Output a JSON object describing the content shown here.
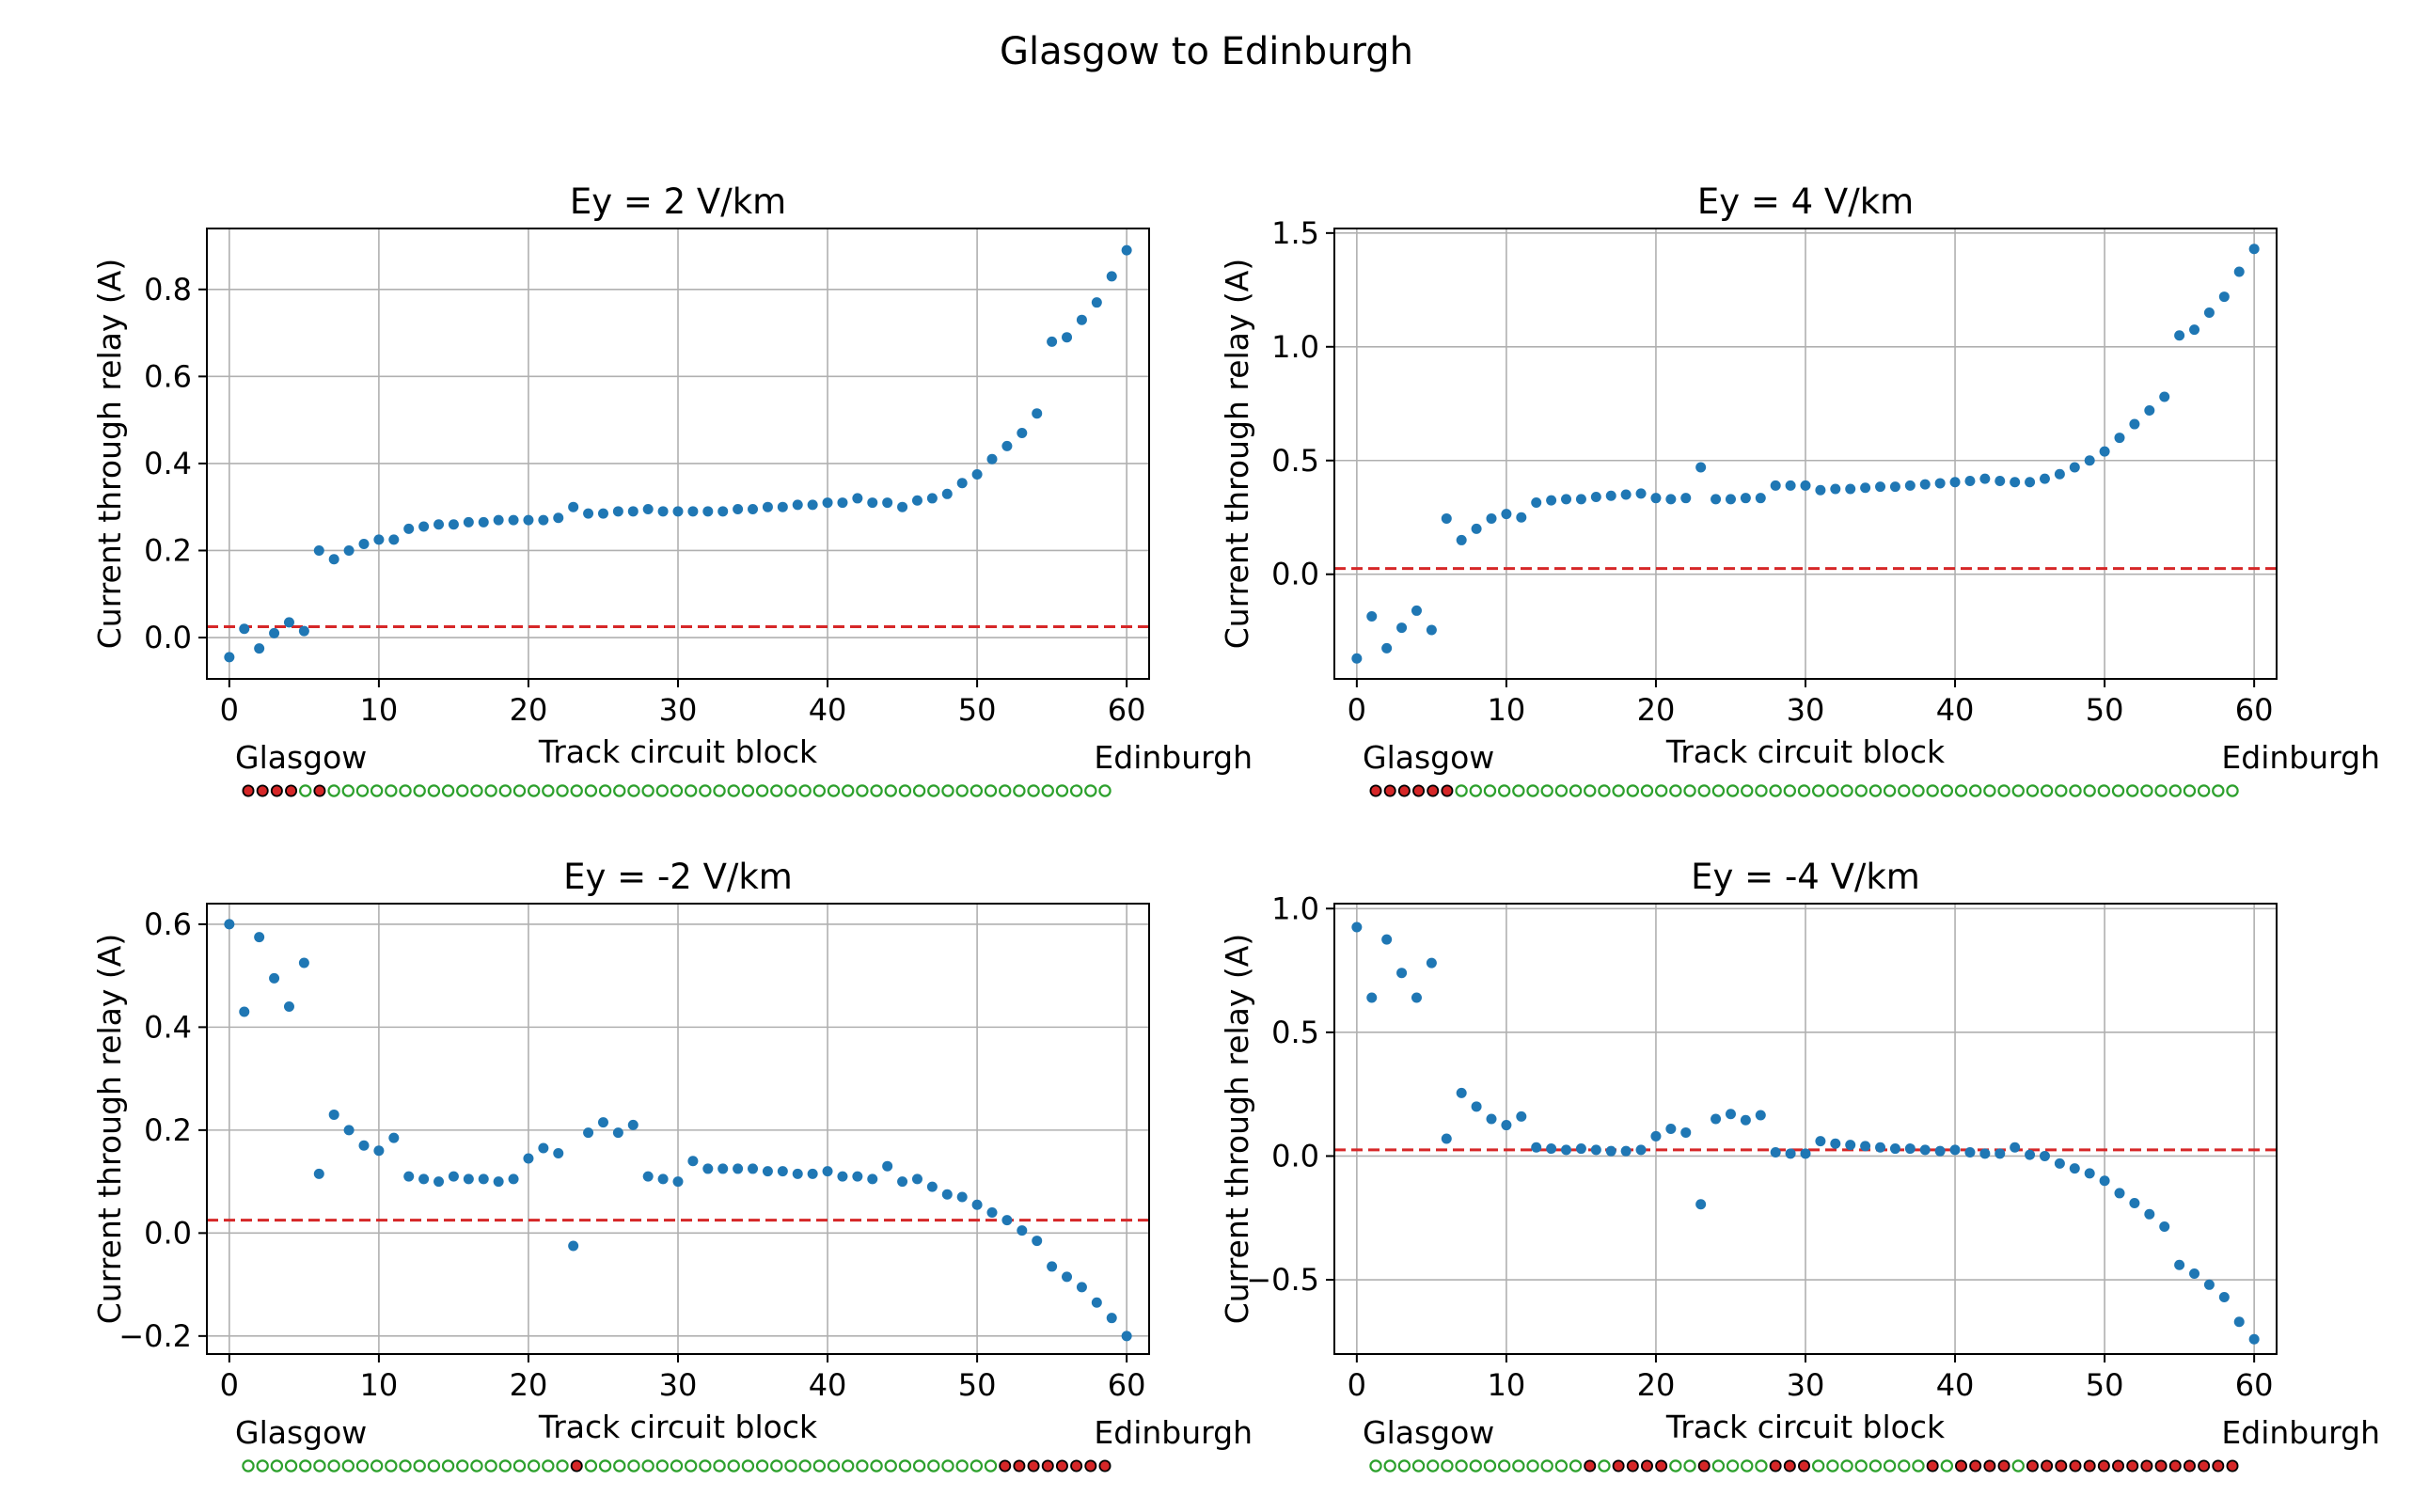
{
  "title": "Glasgow to Edinburgh",
  "colors": {
    "points": "#1f77b4",
    "threshold": "#d62728",
    "grid": "#b0b0b0",
    "indicator_on": "#d62728",
    "indicator_off": "#2ca02c"
  },
  "chart_data": [
    {
      "type": "scatter",
      "title": "Ey = 2 V/km",
      "xlabel": "Track circuit block",
      "ylabel": "Current through relay (A)",
      "start_label": "Glasgow",
      "end_label": "Edinburgh",
      "grid": true,
      "threshold": 0.025,
      "xlim": [
        -1.5,
        61.5
      ],
      "ylim": [
        -0.095,
        0.94
      ],
      "xticks": [
        0,
        10,
        20,
        30,
        40,
        50,
        60
      ],
      "yticks": [
        0.0,
        0.2,
        0.4,
        0.6,
        0.8
      ],
      "ytick_labels": [
        "0.0",
        "0.2",
        "0.4",
        "0.6",
        "0.8"
      ],
      "x": [
        0,
        1,
        2,
        3,
        4,
        5,
        6,
        7,
        8,
        9,
        10,
        11,
        12,
        13,
        14,
        15,
        16,
        17,
        18,
        19,
        20,
        21,
        22,
        23,
        24,
        25,
        26,
        27,
        28,
        29,
        30,
        31,
        32,
        33,
        34,
        35,
        36,
        37,
        38,
        39,
        40,
        41,
        42,
        43,
        44,
        45,
        46,
        47,
        48,
        49,
        50,
        51,
        52,
        53,
        54,
        55,
        56,
        57,
        58,
        59,
        60
      ],
      "y": [
        -0.045,
        0.02,
        -0.025,
        0.01,
        0.035,
        0.015,
        0.2,
        0.18,
        0.2,
        0.215,
        0.225,
        0.225,
        0.25,
        0.255,
        0.26,
        0.26,
        0.265,
        0.265,
        0.27,
        0.27,
        0.27,
        0.27,
        0.275,
        0.3,
        0.285,
        0.285,
        0.29,
        0.29,
        0.295,
        0.29,
        0.29,
        0.29,
        0.29,
        0.29,
        0.295,
        0.295,
        0.3,
        0.3,
        0.305,
        0.305,
        0.31,
        0.31,
        0.32,
        0.31,
        0.31,
        0.3,
        0.315,
        0.32,
        0.33,
        0.355,
        0.375,
        0.41,
        0.44,
        0.47,
        0.515,
        0.68,
        0.69,
        0.73,
        0.77,
        0.83,
        0.89
      ],
      "relay_states": [
        1,
        1,
        1,
        1,
        0,
        1,
        0,
        0,
        0,
        0,
        0,
        0,
        0,
        0,
        0,
        0,
        0,
        0,
        0,
        0,
        0,
        0,
        0,
        0,
        0,
        0,
        0,
        0,
        0,
        0,
        0,
        0,
        0,
        0,
        0,
        0,
        0,
        0,
        0,
        0,
        0,
        0,
        0,
        0,
        0,
        0,
        0,
        0,
        0,
        0,
        0,
        0,
        0,
        0,
        0,
        0,
        0,
        0,
        0,
        0,
        0
      ]
    },
    {
      "type": "scatter",
      "title": "Ey = 4 V/km",
      "xlabel": "Track circuit block",
      "ylabel": "Current through relay (A)",
      "start_label": "Glasgow",
      "end_label": "Edinburgh",
      "grid": true,
      "threshold": 0.025,
      "xlim": [
        -1.5,
        61.5
      ],
      "ylim": [
        -0.46,
        1.52
      ],
      "xticks": [
        0,
        10,
        20,
        30,
        40,
        50,
        60
      ],
      "yticks": [
        0.0,
        0.5,
        1.0,
        1.5
      ],
      "ytick_labels": [
        "0.0",
        "0.5",
        "1.0",
        "1.5"
      ],
      "x": [
        0,
        1,
        2,
        3,
        4,
        5,
        6,
        7,
        8,
        9,
        10,
        11,
        12,
        13,
        14,
        15,
        16,
        17,
        18,
        19,
        20,
        21,
        22,
        23,
        24,
        25,
        26,
        27,
        28,
        29,
        30,
        31,
        32,
        33,
        34,
        35,
        36,
        37,
        38,
        39,
        40,
        41,
        42,
        43,
        44,
        45,
        46,
        47,
        48,
        49,
        50,
        51,
        52,
        53,
        54,
        55,
        56,
        57,
        58,
        59,
        60
      ],
      "y": [
        -0.37,
        -0.185,
        -0.325,
        -0.235,
        -0.16,
        -0.245,
        0.245,
        0.15,
        0.2,
        0.245,
        0.265,
        0.25,
        0.315,
        0.325,
        0.33,
        0.33,
        0.34,
        0.345,
        0.35,
        0.355,
        0.335,
        0.33,
        0.335,
        0.47,
        0.33,
        0.33,
        0.335,
        0.335,
        0.39,
        0.39,
        0.39,
        0.37,
        0.375,
        0.375,
        0.38,
        0.385,
        0.385,
        0.39,
        0.395,
        0.4,
        0.405,
        0.41,
        0.42,
        0.41,
        0.405,
        0.405,
        0.42,
        0.44,
        0.47,
        0.5,
        0.54,
        0.6,
        0.66,
        0.72,
        0.78,
        1.05,
        1.075,
        1.15,
        1.22,
        1.33,
        1.43
      ],
      "relay_states": [
        1,
        1,
        1,
        1,
        1,
        1,
        0,
        0,
        0,
        0,
        0,
        0,
        0,
        0,
        0,
        0,
        0,
        0,
        0,
        0,
        0,
        0,
        0,
        0,
        0,
        0,
        0,
        0,
        0,
        0,
        0,
        0,
        0,
        0,
        0,
        0,
        0,
        0,
        0,
        0,
        0,
        0,
        0,
        0,
        0,
        0,
        0,
        0,
        0,
        0,
        0,
        0,
        0,
        0,
        0,
        0,
        0,
        0,
        0,
        0,
        0
      ]
    },
    {
      "type": "scatter",
      "title": "Ey = -2 V/km",
      "xlabel": "Track circuit block",
      "ylabel": "Current through relay (A)",
      "start_label": "Glasgow",
      "end_label": "Edinburgh",
      "grid": true,
      "threshold": 0.025,
      "xlim": [
        -1.5,
        61.5
      ],
      "ylim": [
        -0.235,
        0.64
      ],
      "xticks": [
        0,
        10,
        20,
        30,
        40,
        50,
        60
      ],
      "yticks": [
        -0.2,
        0.0,
        0.2,
        0.4,
        0.6
      ],
      "ytick_labels": [
        "−0.2",
        "0.0",
        "0.2",
        "0.4",
        "0.6"
      ],
      "x": [
        0,
        1,
        2,
        3,
        4,
        5,
        6,
        7,
        8,
        9,
        10,
        11,
        12,
        13,
        14,
        15,
        16,
        17,
        18,
        19,
        20,
        21,
        22,
        23,
        24,
        25,
        26,
        27,
        28,
        29,
        30,
        31,
        32,
        33,
        34,
        35,
        36,
        37,
        38,
        39,
        40,
        41,
        42,
        43,
        44,
        45,
        46,
        47,
        48,
        49,
        50,
        51,
        52,
        53,
        54,
        55,
        56,
        57,
        58,
        59,
        60
      ],
      "y": [
        0.6,
        0.43,
        0.575,
        0.495,
        0.44,
        0.525,
        0.115,
        0.23,
        0.2,
        0.17,
        0.16,
        0.185,
        0.11,
        0.105,
        0.1,
        0.11,
        0.105,
        0.105,
        0.1,
        0.105,
        0.145,
        0.165,
        0.155,
        -0.025,
        0.195,
        0.215,
        0.195,
        0.21,
        0.11,
        0.105,
        0.1,
        0.14,
        0.125,
        0.125,
        0.125,
        0.125,
        0.12,
        0.12,
        0.115,
        0.115,
        0.12,
        0.11,
        0.11,
        0.105,
        0.13,
        0.1,
        0.105,
        0.09,
        0.075,
        0.07,
        0.055,
        0.04,
        0.025,
        0.005,
        -0.015,
        -0.065,
        -0.085,
        -0.105,
        -0.135,
        -0.165,
        -0.2
      ],
      "relay_states": [
        0,
        0,
        0,
        0,
        0,
        0,
        0,
        0,
        0,
        0,
        0,
        0,
        0,
        0,
        0,
        0,
        0,
        0,
        0,
        0,
        0,
        0,
        0,
        1,
        0,
        0,
        0,
        0,
        0,
        0,
        0,
        0,
        0,
        0,
        0,
        0,
        0,
        0,
        0,
        0,
        0,
        0,
        0,
        0,
        0,
        0,
        0,
        0,
        0,
        0,
        0,
        0,
        0,
        1,
        1,
        1,
        1,
        1,
        1,
        1,
        1
      ]
    },
    {
      "type": "scatter",
      "title": "Ey = -4 V/km",
      "xlabel": "Track circuit block",
      "ylabel": "Current through relay (A)",
      "start_label": "Glasgow",
      "end_label": "Edinburgh",
      "grid": true,
      "threshold": 0.025,
      "xlim": [
        -1.5,
        61.5
      ],
      "ylim": [
        -0.8,
        1.02
      ],
      "xticks": [
        0,
        10,
        20,
        30,
        40,
        50,
        60
      ],
      "yticks": [
        -0.5,
        0.0,
        0.5,
        1.0
      ],
      "ytick_labels": [
        "−0.5",
        "0.0",
        "0.5",
        "1.0"
      ],
      "x": [
        0,
        1,
        2,
        3,
        4,
        5,
        6,
        7,
        8,
        9,
        10,
        11,
        12,
        13,
        14,
        15,
        16,
        17,
        18,
        19,
        20,
        21,
        22,
        23,
        24,
        25,
        26,
        27,
        28,
        29,
        30,
        31,
        32,
        33,
        34,
        35,
        36,
        37,
        38,
        39,
        40,
        41,
        42,
        43,
        44,
        45,
        46,
        47,
        48,
        49,
        50,
        51,
        52,
        53,
        54,
        55,
        56,
        57,
        58,
        59,
        60
      ],
      "y": [
        0.925,
        0.64,
        0.875,
        0.74,
        0.64,
        0.78,
        0.07,
        0.255,
        0.2,
        0.15,
        0.125,
        0.16,
        0.035,
        0.03,
        0.025,
        0.03,
        0.025,
        0.02,
        0.02,
        0.025,
        0.08,
        0.11,
        0.095,
        -0.195,
        0.15,
        0.17,
        0.145,
        0.165,
        0.015,
        0.01,
        0.01,
        0.06,
        0.05,
        0.045,
        0.04,
        0.035,
        0.03,
        0.03,
        0.025,
        0.02,
        0.025,
        0.015,
        0.01,
        0.01,
        0.035,
        0.005,
        0.0,
        -0.03,
        -0.05,
        -0.07,
        -0.1,
        -0.15,
        -0.19,
        -0.235,
        -0.285,
        -0.44,
        -0.475,
        -0.52,
        -0.57,
        -0.67,
        -0.74
      ],
      "relay_states": [
        0,
        0,
        0,
        0,
        0,
        0,
        0,
        0,
        0,
        0,
        0,
        0,
        0,
        0,
        0,
        1,
        0,
        1,
        1,
        1,
        1,
        0,
        0,
        1,
        0,
        0,
        0,
        0,
        1,
        1,
        1,
        0,
        0,
        0,
        0,
        0,
        0,
        0,
        0,
        1,
        0,
        1,
        1,
        1,
        1,
        0,
        1,
        1,
        1,
        1,
        1,
        1,
        1,
        1,
        1,
        1,
        1,
        1,
        1,
        1,
        1
      ]
    }
  ]
}
